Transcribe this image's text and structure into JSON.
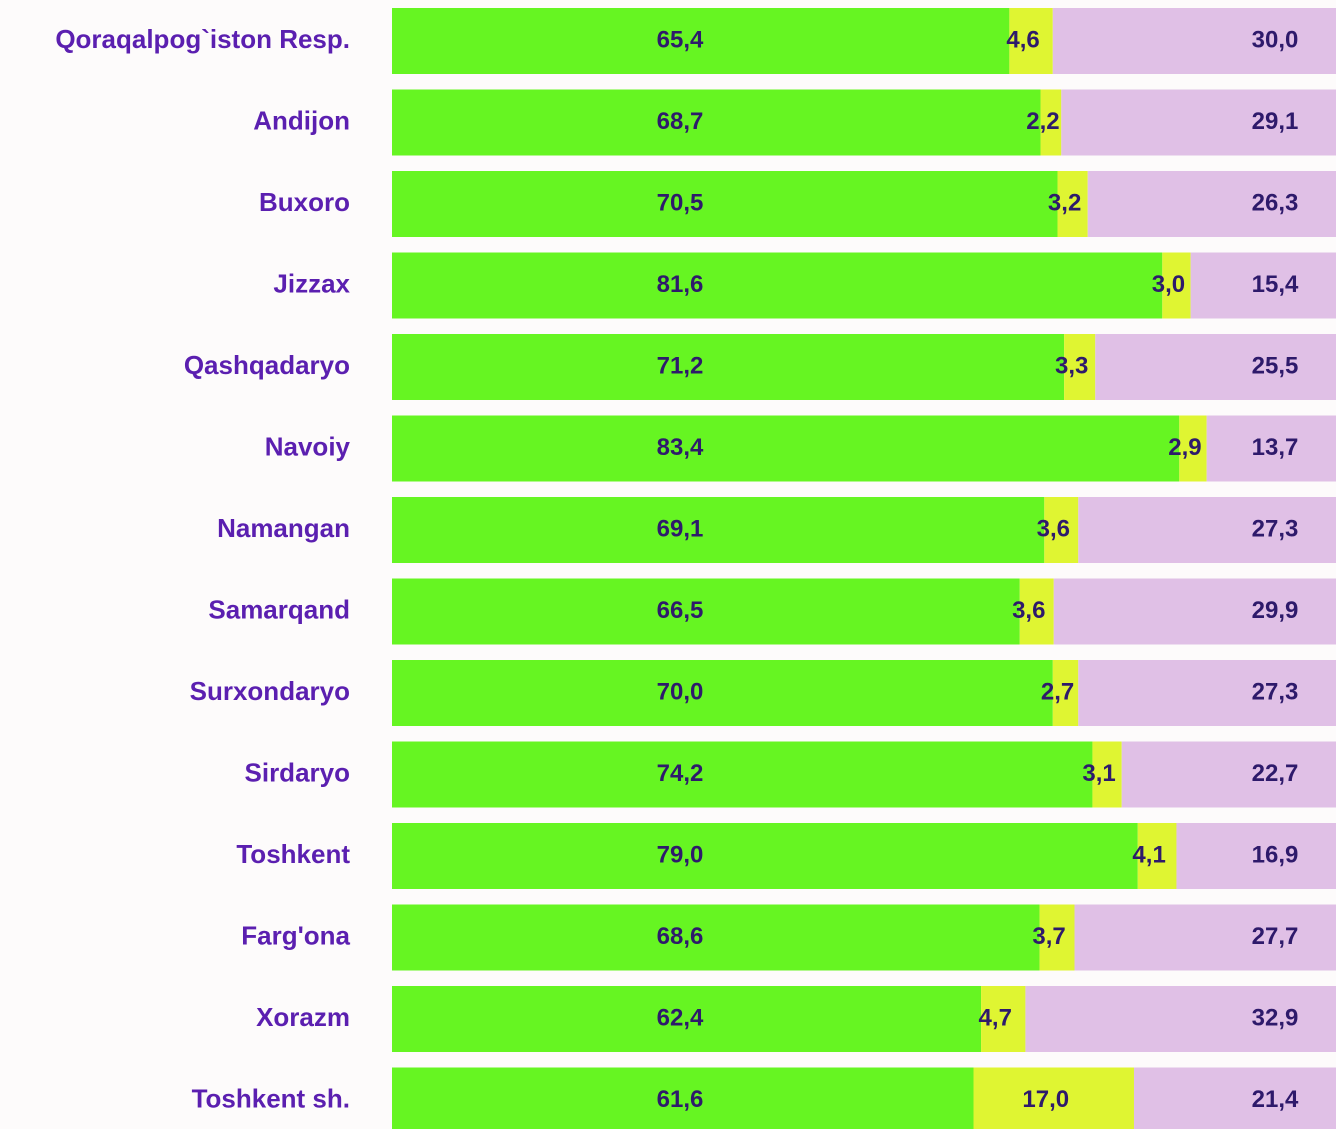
{
  "chart_data": {
    "type": "stacked_bar",
    "orientation": "horizontal",
    "categories": [
      "Qoraqalpog`iston Resp.",
      "Andijon",
      "Buxoro",
      "Jizzax",
      "Qashqadaryo",
      "Navoiy",
      "Namangan",
      "Samarqand",
      "Surxondaryo",
      "Sirdaryo",
      "Toshkent",
      "Farg'ona",
      "Xorazm",
      "Toshkent sh."
    ],
    "xlim": [
      0,
      100
    ],
    "series": [
      {
        "color": "#66f522",
        "values": [
          65.4,
          68.7,
          70.5,
          81.6,
          71.2,
          83.4,
          69.1,
          66.5,
          70.0,
          74.2,
          79.0,
          68.6,
          62.4,
          61.6
        ],
        "value_labels": [
          "65,4",
          "68,7",
          "70,5",
          "81,6",
          "71,2",
          "83,4",
          "69,1",
          "66,5",
          "70,0",
          "74,2",
          "79,0",
          "68,6",
          "62,4",
          "61,6"
        ]
      },
      {
        "color": "#dff532",
        "values": [
          4.6,
          2.2,
          3.2,
          3.0,
          3.3,
          2.9,
          3.6,
          3.6,
          2.7,
          3.1,
          4.1,
          3.7,
          4.7,
          17.0
        ],
        "value_labels": [
          "4,6",
          "2,2",
          "3,2",
          "3,0",
          "3,3",
          "2,9",
          "3,6",
          "3,6",
          "2,7",
          "3,1",
          "4,1",
          "3,7",
          "4,7",
          "17,0"
        ]
      },
      {
        "color": "#e0c0e6",
        "values": [
          30.0,
          29.1,
          26.3,
          15.4,
          25.5,
          13.7,
          27.3,
          29.9,
          27.3,
          22.7,
          16.9,
          27.7,
          32.9,
          21.4
        ],
        "value_labels": [
          "30,0",
          "29,1",
          "26,3",
          "15,4",
          "25,5",
          "13,7",
          "27,3",
          "29,9",
          "27,3",
          "22,7",
          "16,9",
          "27,7",
          "32,9",
          "21,4"
        ]
      }
    ]
  }
}
